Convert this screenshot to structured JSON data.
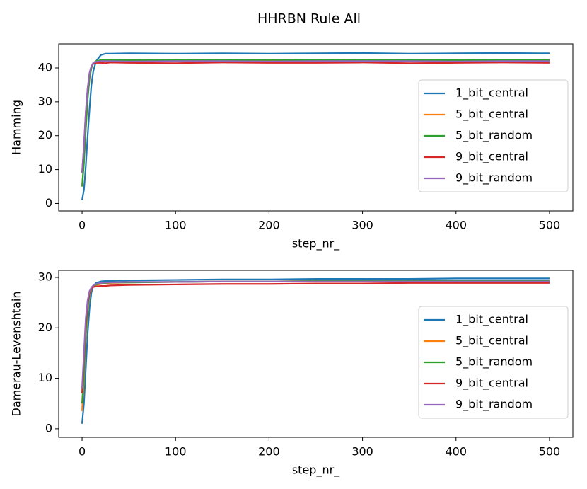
{
  "title": "HHRBN Rule All",
  "chart_data": [
    {
      "type": "line",
      "xlabel": "step_nr_",
      "ylabel": "Hamming",
      "x": [
        0,
        2,
        4,
        6,
        8,
        10,
        12,
        15,
        20,
        25,
        30,
        50,
        100,
        150,
        200,
        250,
        300,
        350,
        400,
        450,
        500
      ],
      "xlim": [
        -25,
        525
      ],
      "xticks": [
        0,
        100,
        200,
        300,
        400,
        500
      ],
      "ylim": [
        -2.2,
        47.1
      ],
      "yticks": [
        0,
        10,
        20,
        30,
        40
      ],
      "grid": false,
      "legend": "lower right",
      "series": [
        {
          "name": "1_bit_central",
          "color": "#1f77b4",
          "values": [
            1,
            4,
            11,
            20,
            28,
            35,
            39,
            42,
            43.8,
            44.2,
            44.2,
            44.3,
            44.2,
            44.3,
            44.2,
            44.3,
            44.4,
            44.2,
            44.3,
            44.4,
            44.3
          ]
        },
        {
          "name": "5_bit_central",
          "color": "#ff7f0e",
          "values": [
            5,
            12,
            22,
            31,
            37,
            40,
            41.5,
            42,
            42.2,
            42.3,
            42.3,
            42.2,
            42.3,
            42.3,
            42.2,
            42.3,
            42.3,
            42.2,
            42.3,
            42.3,
            42.3
          ]
        },
        {
          "name": "5_bit_random",
          "color": "#2ca02c",
          "values": [
            5,
            12,
            22,
            31,
            37,
            40,
            41.5,
            42,
            42.3,
            42.4,
            42.4,
            42.3,
            42.4,
            42.3,
            42.4,
            42.3,
            42.4,
            42.3,
            42.3,
            42.4,
            42.4
          ]
        },
        {
          "name": "9_bit_central",
          "color": "#d62728",
          "values": [
            9,
            17,
            27,
            34,
            38.5,
            40.5,
            41.2,
            41.5,
            41.5,
            41.4,
            41.6,
            41.5,
            41.4,
            41.6,
            41.5,
            41.5,
            41.6,
            41.4,
            41.5,
            41.6,
            41.5
          ]
        },
        {
          "name": "9_bit_random",
          "color": "#9467bd",
          "values": [
            9,
            17,
            27,
            34,
            38.5,
            40.5,
            41.5,
            41.8,
            42,
            42,
            42,
            41.9,
            42,
            42,
            41.9,
            42,
            42,
            42,
            41.9,
            42,
            42
          ]
        }
      ]
    },
    {
      "type": "line",
      "xlabel": "step_nr_",
      "ylabel": "Damerau-Levenshtain",
      "x": [
        0,
        2,
        4,
        6,
        8,
        10,
        12,
        15,
        20,
        25,
        30,
        50,
        100,
        150,
        200,
        250,
        300,
        350,
        400,
        450,
        500
      ],
      "xlim": [
        -25,
        525
      ],
      "xticks": [
        0,
        100,
        200,
        300,
        400,
        500
      ],
      "ylim": [
        -1.7,
        31.4
      ],
      "yticks": [
        0,
        10,
        20,
        30
      ],
      "grid": false,
      "legend": "lower right",
      "series": [
        {
          "name": "1_bit_central",
          "color": "#1f77b4",
          "values": [
            1,
            5,
            12,
            19,
            24,
            27,
            28.3,
            28.9,
            29.2,
            29.3,
            29.3,
            29.4,
            29.5,
            29.6,
            29.6,
            29.7,
            29.7,
            29.7,
            29.8,
            29.8,
            29.8
          ]
        },
        {
          "name": "5_bit_central",
          "color": "#ff7f0e",
          "values": [
            3.5,
            10,
            18,
            23.5,
            26.5,
            27.7,
            28.2,
            28.5,
            28.7,
            28.8,
            28.9,
            29,
            29.1,
            29.2,
            29.2,
            29.3,
            29.3,
            29.3,
            29.3,
            29.3,
            29.3
          ]
        },
        {
          "name": "5_bit_random",
          "color": "#2ca02c",
          "values": [
            5,
            11,
            19,
            24,
            26.8,
            27.8,
            28.3,
            28.6,
            28.8,
            28.9,
            29,
            29,
            29.1,
            29.2,
            29.2,
            29.3,
            29.3,
            29.3,
            29.3,
            29.3,
            29.3
          ]
        },
        {
          "name": "9_bit_central",
          "color": "#d62728",
          "values": [
            7,
            14,
            21,
            25,
            27,
            27.8,
            28.1,
            28.2,
            28.3,
            28.3,
            28.4,
            28.5,
            28.6,
            28.7,
            28.7,
            28.8,
            28.8,
            28.9,
            28.9,
            28.9,
            28.9
          ]
        },
        {
          "name": "9_bit_random",
          "color": "#9467bd",
          "values": [
            8,
            15,
            22,
            25.5,
            27.3,
            28,
            28.4,
            28.7,
            28.9,
            29,
            29,
            29.1,
            29.1,
            29.2,
            29.2,
            29.2,
            29.2,
            29.2,
            29.2,
            29.2,
            29.2
          ]
        }
      ]
    }
  ]
}
